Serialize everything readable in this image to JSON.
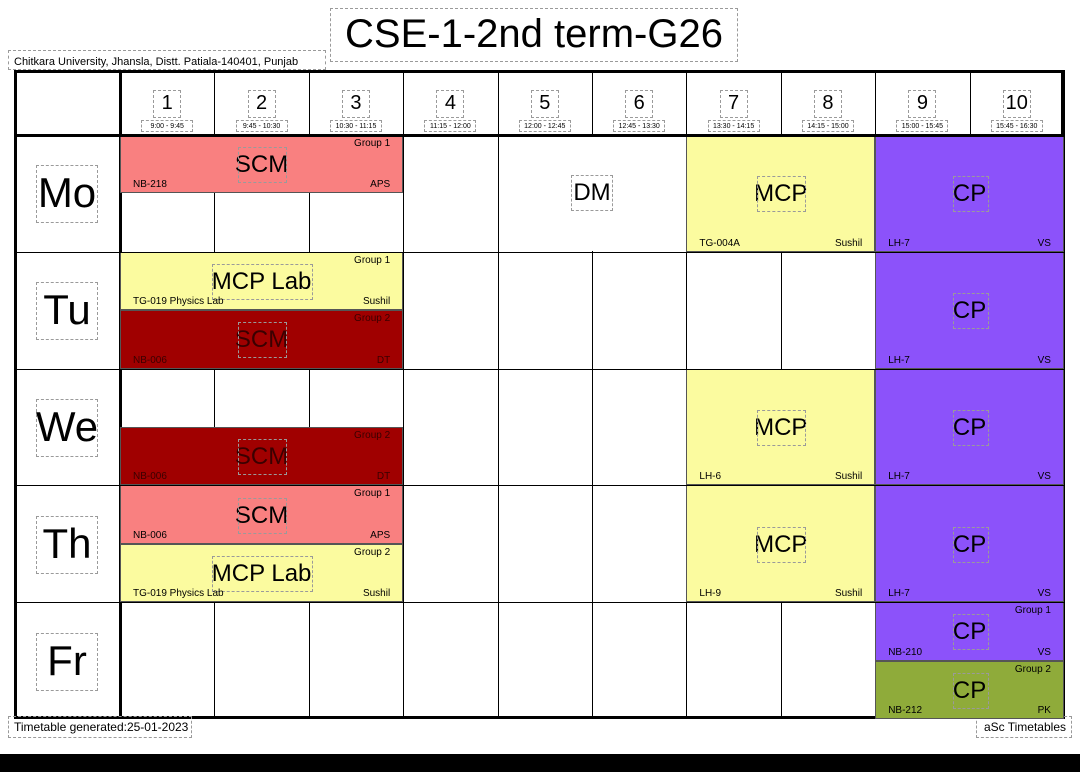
{
  "header": {
    "title": "CSE-1-2nd term-G26",
    "institution": "Chitkara University, Jhansla, Distt. Patiala-140401, Punjab"
  },
  "periods": [
    {
      "num": "1",
      "time": "9:00 - 9:45"
    },
    {
      "num": "2",
      "time": "9:45 - 10:30"
    },
    {
      "num": "3",
      "time": "10:30 - 11:15"
    },
    {
      "num": "4",
      "time": "11:15 - 12:00"
    },
    {
      "num": "5",
      "time": "12:00 - 12:45"
    },
    {
      "num": "6",
      "time": "12:45 - 13:30"
    },
    {
      "num": "7",
      "time": "13:30 - 14:15"
    },
    {
      "num": "8",
      "time": "14:15 - 15:00"
    },
    {
      "num": "9",
      "time": "15:00 - 15:45"
    },
    {
      "num": "10",
      "time": "15:45 - 16:30"
    }
  ],
  "days": [
    "Mo",
    "Tu",
    "We",
    "Th",
    "Fr"
  ],
  "colors": {
    "scm_light": "#f98080",
    "scm_dark": "#a00000",
    "mcp": "#fbfb9f",
    "cp_purple": "#8c52fa",
    "cp_green": "#8fab3a",
    "dm": "#ffffff"
  },
  "cards": [
    {
      "day": 0,
      "start": 0,
      "span": 3,
      "part": 0,
      "parts": 2,
      "subject": "SCM",
      "room": "NB-218",
      "teacher": "APS",
      "group": "Group 1",
      "color": "#f98080"
    },
    {
      "day": 0,
      "start": 4,
      "span": 2,
      "part": 0,
      "parts": 1,
      "subject": "DM",
      "room": "",
      "teacher": "",
      "group": "",
      "color": "#ffffff"
    },
    {
      "day": 0,
      "start": 6,
      "span": 2,
      "part": 0,
      "parts": 1,
      "subject": "MCP",
      "room": "TG-004A",
      "teacher": "Sushil",
      "group": "",
      "color": "#fbfb9f"
    },
    {
      "day": 0,
      "start": 8,
      "span": 2,
      "part": 0,
      "parts": 1,
      "subject": "CP",
      "room": "LH-7",
      "teacher": "VS",
      "group": "",
      "color": "#8c52fa"
    },
    {
      "day": 1,
      "start": 0,
      "span": 3,
      "part": 0,
      "parts": 2,
      "subject": "MCP Lab",
      "room": "TG-019 Physics Lab",
      "teacher": "Sushil",
      "group": "Group 1",
      "color": "#fbfb9f"
    },
    {
      "day": 1,
      "start": 0,
      "span": 3,
      "part": 1,
      "parts": 2,
      "subject": "SCM",
      "room": "NB-006",
      "teacher": "DT",
      "group": "Group 2",
      "color": "#a00000"
    },
    {
      "day": 1,
      "start": 8,
      "span": 2,
      "part": 0,
      "parts": 1,
      "subject": "CP",
      "room": "LH-7",
      "teacher": "VS",
      "group": "",
      "color": "#8c52fa"
    },
    {
      "day": 2,
      "start": 0,
      "span": 3,
      "part": 1,
      "parts": 2,
      "subject": "SCM",
      "room": "NB-006",
      "teacher": "DT",
      "group": "Group 2",
      "color": "#a00000"
    },
    {
      "day": 2,
      "start": 6,
      "span": 2,
      "part": 0,
      "parts": 1,
      "subject": "MCP",
      "room": "LH-6",
      "teacher": "Sushil",
      "group": "",
      "color": "#fbfb9f"
    },
    {
      "day": 2,
      "start": 8,
      "span": 2,
      "part": 0,
      "parts": 1,
      "subject": "CP",
      "room": "LH-7",
      "teacher": "VS",
      "group": "",
      "color": "#8c52fa"
    },
    {
      "day": 3,
      "start": 0,
      "span": 3,
      "part": 0,
      "parts": 2,
      "subject": "SCM",
      "room": "NB-006",
      "teacher": "APS",
      "group": "Group 1",
      "color": "#f98080"
    },
    {
      "day": 3,
      "start": 0,
      "span": 3,
      "part": 1,
      "parts": 2,
      "subject": "MCP Lab",
      "room": "TG-019 Physics Lab",
      "teacher": "Sushil",
      "group": "Group 2",
      "color": "#fbfb9f"
    },
    {
      "day": 3,
      "start": 6,
      "span": 2,
      "part": 0,
      "parts": 1,
      "subject": "MCP",
      "room": "LH-9",
      "teacher": "Sushil",
      "group": "",
      "color": "#fbfb9f"
    },
    {
      "day": 3,
      "start": 8,
      "span": 2,
      "part": 0,
      "parts": 1,
      "subject": "CP",
      "room": "LH-7",
      "teacher": "VS",
      "group": "",
      "color": "#8c52fa"
    },
    {
      "day": 4,
      "start": 8,
      "span": 2,
      "part": 0,
      "parts": 2,
      "subject": "CP",
      "room": "NB-210",
      "teacher": "VS",
      "group": "Group 1",
      "color": "#8c52fa"
    },
    {
      "day": 4,
      "start": 8,
      "span": 2,
      "part": 1,
      "parts": 2,
      "subject": "CP",
      "room": "NB-212",
      "teacher": "PK",
      "group": "Group 2",
      "color": "#8fab3a"
    }
  ],
  "footer": {
    "generated": "Timetable generated:25-01-2023",
    "software": "aSc Timetables"
  }
}
